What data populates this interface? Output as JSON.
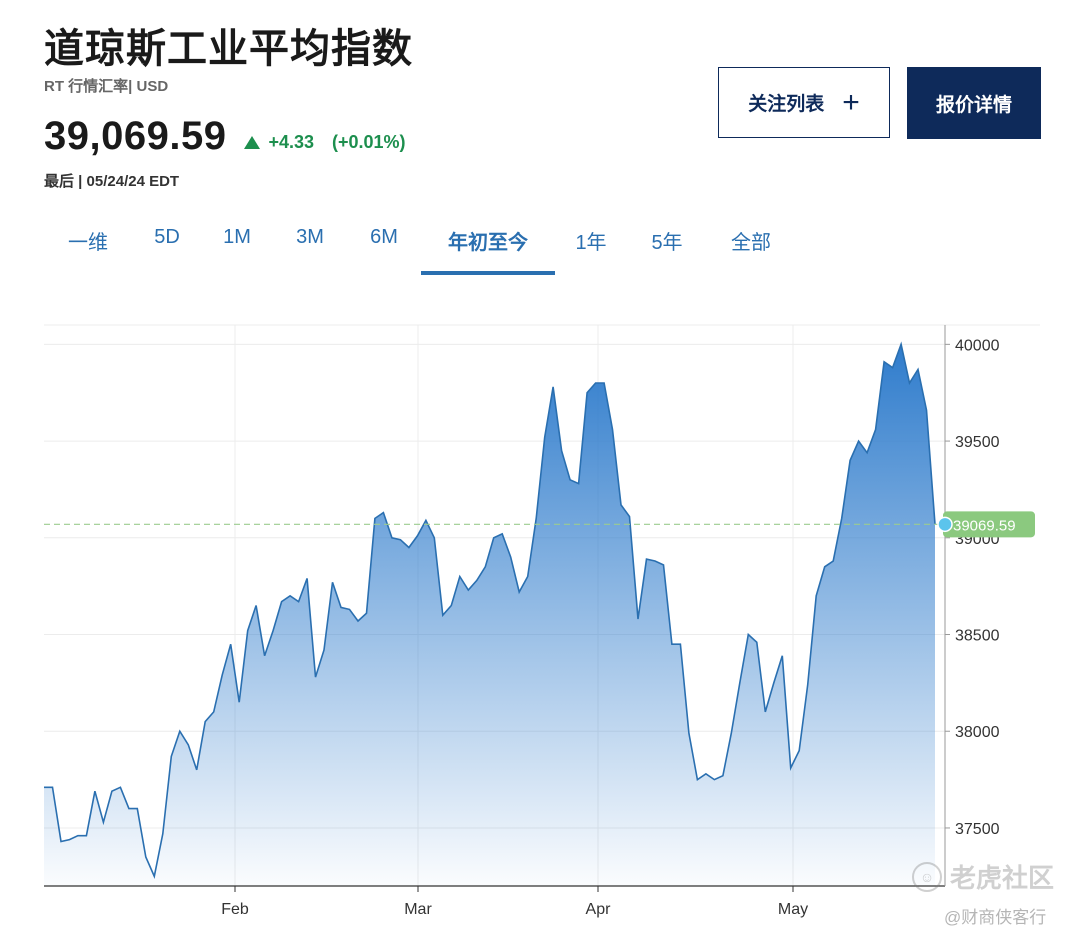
{
  "header": {
    "title": "道琼斯工业平均指数",
    "subtitle": "RT 行情汇率| USD",
    "price": "39,069.59",
    "change": "+4.33",
    "change_pct": "(+0.01%)",
    "last_updated": "最后 | 05/24/24 EDT",
    "positive_color": "#1d8f4e"
  },
  "buttons": {
    "watchlist": "关注列表",
    "watchlist_icon": "plus-icon",
    "quote_details": "报价详情"
  },
  "tabs": [
    {
      "label": "一维"
    },
    {
      "label": "5D"
    },
    {
      "label": "1M"
    },
    {
      "label": "3M"
    },
    {
      "label": "6M"
    },
    {
      "label": "年初至今",
      "active": true
    },
    {
      "label": "1年"
    },
    {
      "label": "5年"
    },
    {
      "label": "全部"
    }
  ],
  "watermark": {
    "brand": "老虎社区",
    "source": "@财商侠客行"
  },
  "chart_data": {
    "type": "area",
    "x_ticks": [
      "Feb",
      "Mar",
      "Apr",
      "May"
    ],
    "y_ticks": [
      37500,
      38000,
      38500,
      39000,
      39500,
      40000
    ],
    "ylim": [
      37200,
      40100
    ],
    "grid": true,
    "last_value": 39069.59,
    "last_value_label": "39069.59",
    "line_color": "#2a6fb0",
    "fill_top_color": "#2f7ccc",
    "reference_line_color": "#9ccc8f",
    "series": [
      {
        "values": [
          37710,
          37710,
          37430,
          37440,
          37460,
          37460,
          37690,
          37530,
          37690,
          37710,
          37600,
          37600,
          37350,
          37250,
          37470,
          37870,
          38000,
          37930,
          37800,
          38050,
          38100,
          38290,
          38450,
          38150,
          38520,
          38650,
          38390,
          38520,
          38670,
          38700,
          38670,
          38790,
          38280,
          38420,
          38770,
          38640,
          38630,
          38570,
          38610,
          39100,
          39130,
          39000,
          38990,
          38950,
          39010,
          39090,
          39000,
          38600,
          38650,
          38800,
          38730,
          38780,
          38850,
          39000,
          39020,
          38900,
          38720,
          38800,
          39100,
          39520,
          39780,
          39450,
          39300,
          39280,
          39750,
          39800,
          39800,
          39560,
          39170,
          39110,
          38580,
          38890,
          38880,
          38860,
          38450,
          38450,
          37990,
          37750,
          37780,
          37750,
          37770,
          37990,
          38250,
          38500,
          38460,
          38100,
          38250,
          38390,
          37810,
          37900,
          38240,
          38700,
          38850,
          38880,
          39100,
          39400,
          39500,
          39440,
          39560,
          39910,
          39880,
          40000,
          39800,
          39870,
          39660,
          39069.59
        ]
      }
    ]
  }
}
